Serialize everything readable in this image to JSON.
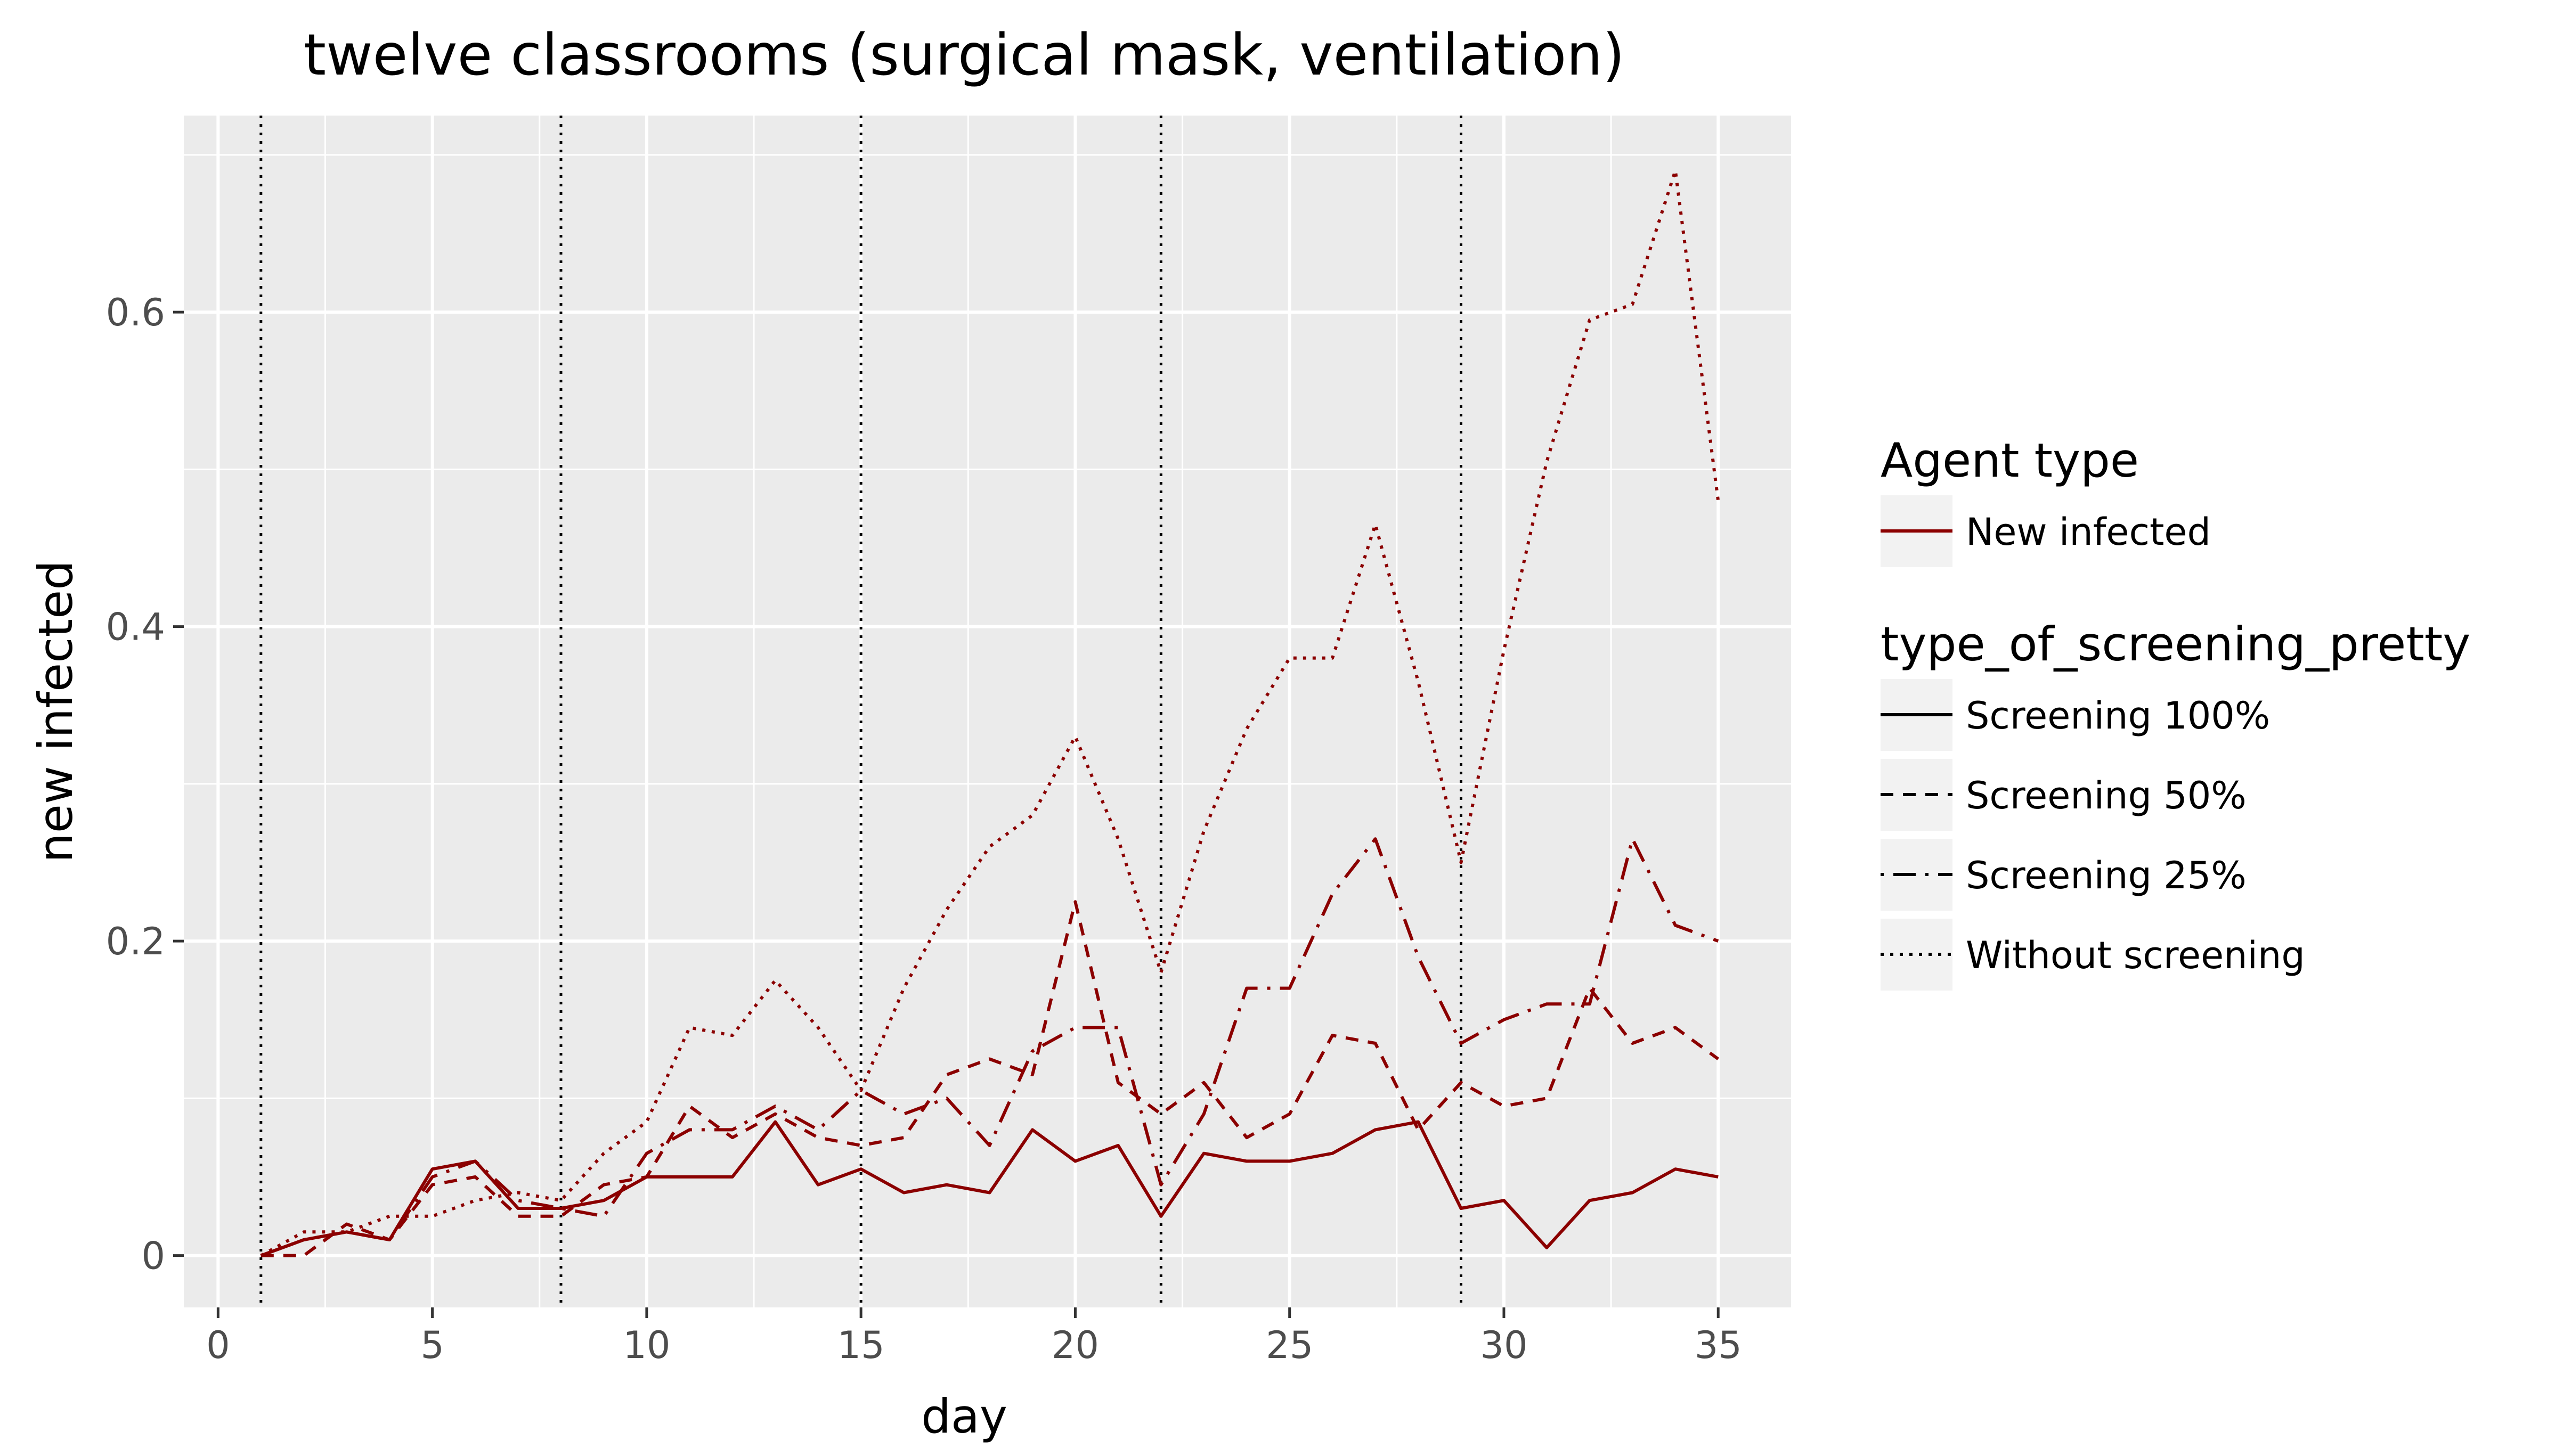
{
  "chart_data": {
    "type": "line",
    "title": "twelve classrooms (surgical mask, ventilation)",
    "xlabel": "day",
    "ylabel": "new infected",
    "xlim": [
      -0.8,
      36.7
    ],
    "ylim": [
      -0.033,
      0.725
    ],
    "x_ticks": [
      0,
      5,
      10,
      15,
      20,
      25,
      30,
      35
    ],
    "y_ticks": [
      0,
      0.2,
      0.4,
      0.6
    ],
    "x_tick_labels": [
      "0",
      "5",
      "10",
      "15",
      "20",
      "25",
      "30",
      "35"
    ],
    "y_tick_labels": [
      "0",
      "0.2",
      "0.4",
      "0.6"
    ],
    "grid": true,
    "panel_background": "#ebebeb",
    "line_color": "#8b0000",
    "vlines": [
      1,
      8,
      15,
      22,
      29
    ],
    "legend_position": "right",
    "legend": {
      "color_title": "Agent type",
      "color_entries": [
        {
          "label": "New infected",
          "color": "#8b0000"
        }
      ],
      "linetype_title": "type_of_screening_pretty",
      "linetype_entries": [
        {
          "label": "Screening 100%",
          "linetype": "solid"
        },
        {
          "label": "Screening 50%",
          "linetype": "dashed"
        },
        {
          "label": "Screening 25%",
          "linetype": "dashdot"
        },
        {
          "label": "Without screening",
          "linetype": "dotted"
        }
      ]
    },
    "x": [
      1,
      2,
      3,
      4,
      5,
      6,
      7,
      8,
      9,
      10,
      11,
      12,
      13,
      14,
      15,
      16,
      17,
      18,
      19,
      20,
      21,
      22,
      23,
      24,
      25,
      26,
      27,
      28,
      29,
      30,
      31,
      32,
      33,
      34,
      35
    ],
    "series": [
      {
        "name": "Screening 100%",
        "linetype": "solid",
        "values": [
          0,
          0.01,
          0.015,
          0.01,
          0.055,
          0.06,
          0.03,
          0.03,
          0.035,
          0.05,
          0.05,
          0.05,
          0.085,
          0.045,
          0.055,
          0.04,
          0.045,
          0.04,
          0.08,
          0.06,
          0.07,
          0.025,
          0.065,
          0.06,
          0.06,
          0.065,
          0.08,
          0.085,
          0.03,
          0.035,
          0.005,
          0.035,
          0.04,
          0.055,
          0.05
        ]
      },
      {
        "name": "Screening 50%",
        "linetype": "dashed",
        "values": [
          0,
          0,
          0.02,
          0.01,
          0.045,
          0.05,
          0.025,
          0.025,
          0.045,
          0.05,
          0.095,
          0.075,
          0.09,
          0.075,
          0.07,
          0.075,
          0.115,
          0.125,
          0.115,
          0.225,
          0.11,
          0.09,
          0.11,
          0.075,
          0.09,
          0.14,
          0.135,
          0.08,
          0.11,
          0.095,
          0.1,
          0.17,
          0.135,
          0.145,
          0.125
        ]
      },
      {
        "name": "Screening 25%",
        "linetype": "dashdot",
        "values": [
          0,
          0.01,
          0.015,
          0.01,
          0.05,
          0.06,
          0.035,
          0.03,
          0.025,
          0.065,
          0.08,
          0.08,
          0.095,
          0.08,
          0.105,
          0.09,
          0.1,
          0.07,
          0.13,
          0.145,
          0.145,
          0.045,
          0.09,
          0.17,
          0.17,
          0.23,
          0.265,
          0.19,
          0.135,
          0.15,
          0.16,
          0.16,
          0.265,
          0.21,
          0.2
        ]
      },
      {
        "name": "Without screening",
        "linetype": "dotted",
        "values": [
          0,
          0.015,
          0.015,
          0.025,
          0.025,
          0.035,
          0.04,
          0.035,
          0.065,
          0.085,
          0.145,
          0.14,
          0.175,
          0.145,
          0.105,
          0.17,
          0.22,
          0.26,
          0.28,
          0.33,
          0.265,
          0.18,
          0.27,
          0.335,
          0.38,
          0.38,
          0.465,
          0.365,
          0.25,
          0.385,
          0.505,
          0.595,
          0.605,
          0.69,
          0.48
        ]
      }
    ]
  }
}
